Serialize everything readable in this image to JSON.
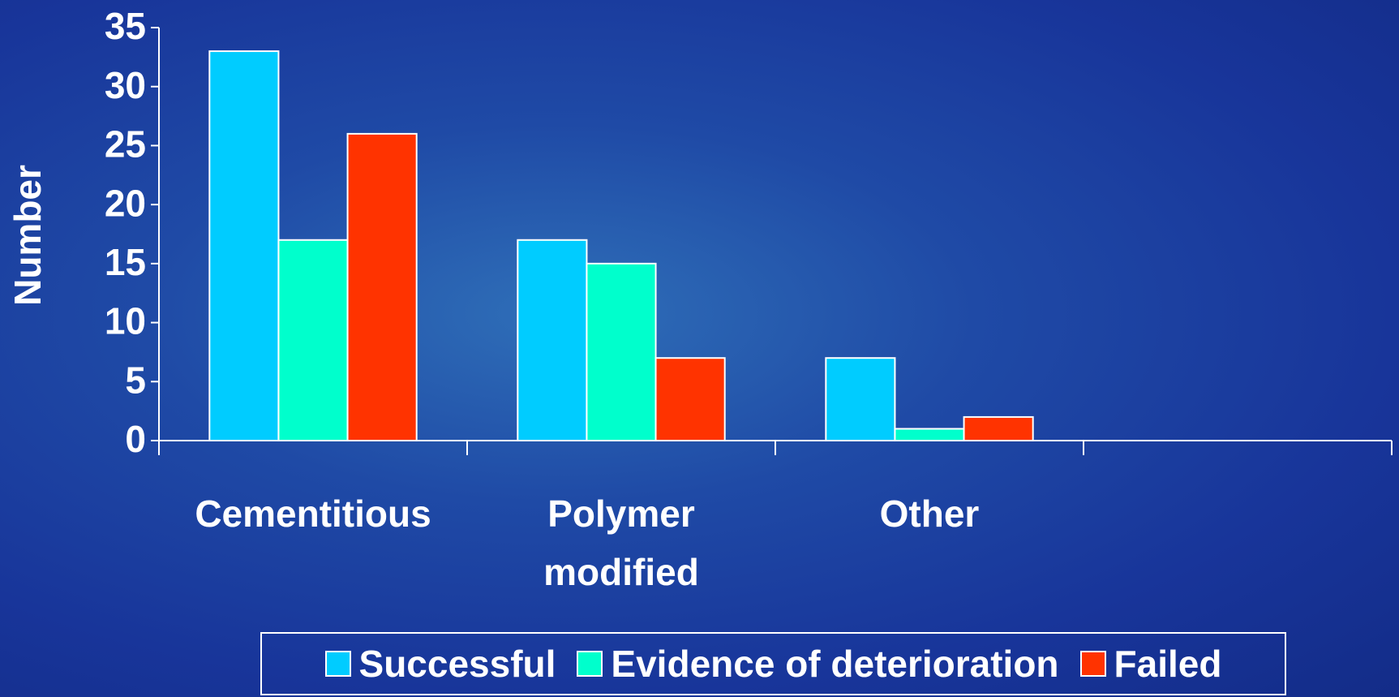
{
  "chart_data": {
    "type": "bar",
    "y_label": "Number",
    "categories": [
      "Cementitious",
      "Polymer modified",
      "Other",
      null
    ],
    "series": [
      {
        "name": "Successful",
        "color": "#00ccff",
        "values": [
          33,
          17,
          7,
          null
        ]
      },
      {
        "name": "Evidence of deterioration",
        "color": "#00ffcc",
        "values": [
          17,
          15,
          1,
          null
        ]
      },
      {
        "name": "Failed",
        "color": "#ff3300",
        "values": [
          26,
          7,
          2,
          null
        ]
      }
    ],
    "ylim": [
      0,
      35
    ],
    "yticks": [
      0,
      5,
      10,
      15,
      20,
      25,
      30,
      35
    ],
    "grid": false,
    "legend": "bottom"
  }
}
